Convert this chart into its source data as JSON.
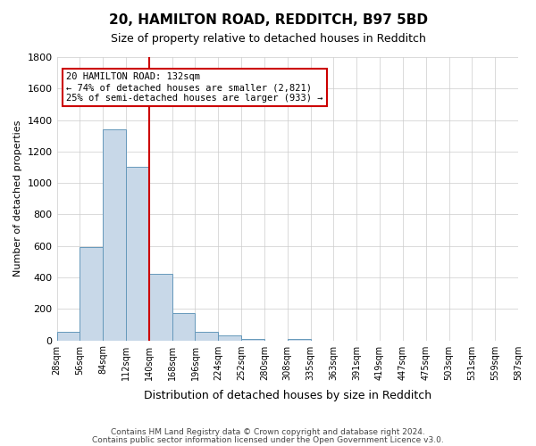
{
  "title1": "20, HAMILTON ROAD, REDDITCH, B97 5BD",
  "title2": "Size of property relative to detached houses in Redditch",
  "xlabel": "Distribution of detached houses by size in Redditch",
  "ylabel": "Number of detached properties",
  "bin_labels": [
    "28sqm",
    "56sqm",
    "84sqm",
    "112sqm",
    "140sqm",
    "168sqm",
    "196sqm",
    "224sqm",
    "252sqm",
    "280sqm",
    "308sqm",
    "335sqm",
    "363sqm",
    "391sqm",
    "419sqm",
    "447sqm",
    "475sqm",
    "503sqm",
    "531sqm",
    "559sqm",
    "587sqm"
  ],
  "bar_values": [
    55,
    590,
    1340,
    1100,
    420,
    175,
    55,
    30,
    10,
    0,
    10,
    0,
    0,
    0,
    0,
    0,
    0,
    0,
    0,
    0
  ],
  "bar_color": "#c8d8e8",
  "bar_edgecolor": "#6699bb",
  "vline_x": 3.5,
  "vline_color": "#cc0000",
  "annotation_line1": "20 HAMILTON ROAD: 132sqm",
  "annotation_line2": "← 74% of detached houses are smaller (2,821)",
  "annotation_line3": "25% of semi-detached houses are larger (933) →",
  "annotation_box_color": "#ffffff",
  "annotation_box_edgecolor": "#cc0000",
  "ylim": [
    0,
    1800
  ],
  "yticks": [
    0,
    200,
    400,
    600,
    800,
    1000,
    1200,
    1400,
    1600,
    1800
  ],
  "footer1": "Contains HM Land Registry data © Crown copyright and database right 2024.",
  "footer2": "Contains public sector information licensed under the Open Government Licence v3.0.",
  "bg_color": "#ffffff",
  "grid_color": "#cccccc"
}
